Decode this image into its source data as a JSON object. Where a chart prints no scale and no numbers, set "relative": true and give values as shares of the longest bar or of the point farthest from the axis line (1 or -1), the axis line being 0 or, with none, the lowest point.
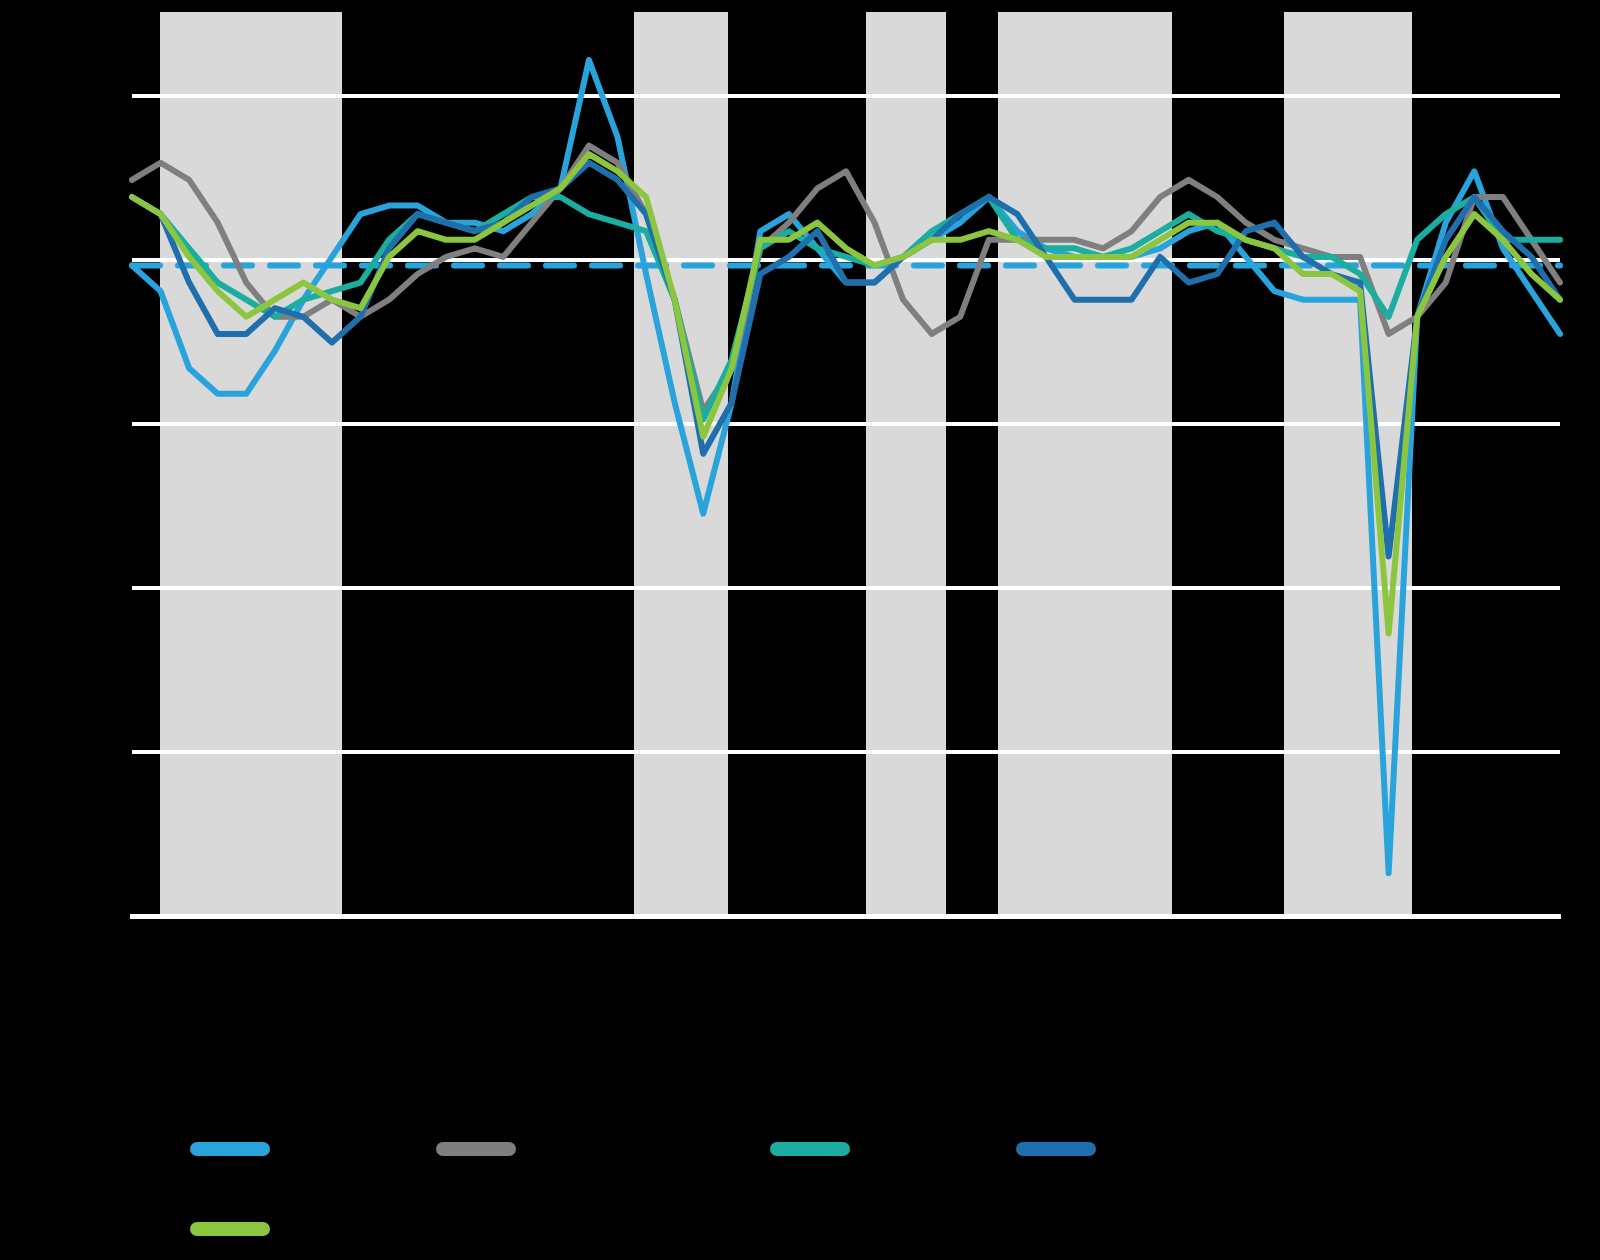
{
  "chart_data": {
    "type": "line",
    "relative": true,
    "grid": "y",
    "marker": "none",
    "line_style": "solid",
    "categories": [
      null,
      null,
      null,
      null,
      null,
      null,
      null,
      null,
      null,
      null,
      null,
      null,
      null,
      null,
      null,
      null,
      null,
      null,
      null,
      null,
      null,
      null,
      null,
      null,
      null,
      null,
      null,
      null,
      null,
      null,
      null,
      null,
      null,
      null,
      null,
      null,
      null,
      null,
      null,
      null,
      null,
      null,
      null,
      null,
      null,
      null,
      null,
      null,
      null,
      null,
      null
    ],
    "series": [
      {
        "color": "#29a3dc",
        "line_style": "dashed",
        "values": [
          0.76,
          0.76,
          0.76,
          0.76,
          0.76,
          0.76,
          0.76,
          0.76,
          0.76,
          0.76,
          0.76,
          0.76,
          0.76,
          0.76,
          0.76,
          0.76,
          0.76,
          0.76,
          0.76,
          0.76,
          0.76,
          0.76,
          0.76,
          0.76,
          0.76,
          0.76,
          0.76,
          0.76,
          0.76,
          0.76,
          0.76,
          0.76,
          0.76,
          0.76,
          0.76,
          0.76,
          0.76,
          0.76,
          0.76,
          0.76,
          0.76,
          0.76,
          0.76,
          0.76,
          0.76,
          0.76,
          0.76,
          0.76,
          0.76,
          0.76,
          0.76
        ]
      },
      {
        "color": "#29a3dc",
        "values": [
          0.76,
          0.73,
          0.64,
          0.61,
          0.61,
          0.66,
          0.72,
          0.77,
          0.82,
          0.83,
          0.83,
          0.81,
          0.81,
          0.8,
          0.82,
          0.85,
          1,
          0.91,
          0.75,
          0.6,
          0.47,
          0.6,
          0.8,
          0.82,
          0.78,
          0.74,
          0.74,
          0.77,
          0.79,
          0.81,
          0.84,
          0.8,
          0.78,
          0.77,
          0.77,
          0.77,
          0.78,
          0.8,
          0.81,
          0.77,
          0.73,
          0.72,
          0.72,
          0.72,
          0.05,
          0.7,
          0.81,
          0.87,
          0.78,
          0.73,
          0.68
        ]
      },
      {
        "color": "#7f7f7f",
        "values": [
          0.86,
          0.88,
          0.86,
          0.81,
          0.74,
          0.7,
          0.7,
          0.72,
          0.7,
          0.72,
          0.75,
          0.77,
          0.78,
          0.77,
          0.81,
          0.85,
          0.9,
          0.88,
          0.82,
          0.72,
          0.59,
          0.64,
          0.78,
          0.81,
          0.85,
          0.87,
          0.81,
          0.72,
          0.68,
          0.7,
          0.79,
          0.79,
          0.79,
          0.79,
          0.78,
          0.8,
          0.84,
          0.86,
          0.84,
          0.81,
          0.79,
          0.78,
          0.77,
          0.77,
          0.68,
          0.7,
          0.74,
          0.84,
          0.84,
          0.79,
          0.74
        ]
      },
      {
        "color": "#1aada0",
        "values": [
          0.84,
          0.82,
          0.78,
          0.74,
          0.72,
          0.7,
          0.72,
          0.73,
          0.74,
          0.79,
          0.82,
          0.81,
          0.8,
          0.82,
          0.84,
          0.84,
          0.82,
          0.81,
          0.8,
          0.72,
          0.58,
          0.65,
          0.78,
          0.8,
          0.78,
          0.77,
          0.76,
          0.77,
          0.8,
          0.82,
          0.84,
          0.79,
          0.78,
          0.78,
          0.77,
          0.78,
          0.8,
          0.82,
          0.8,
          0.79,
          0.78,
          0.77,
          0.77,
          0.75,
          0.7,
          0.79,
          0.82,
          0.84,
          0.79,
          0.79,
          0.79
        ]
      },
      {
        "color": "#1f6fad",
        "values": [
          0.84,
          0.82,
          0.74,
          0.68,
          0.68,
          0.71,
          0.7,
          0.67,
          0.7,
          0.78,
          0.82,
          0.81,
          0.8,
          0.81,
          0.84,
          0.85,
          0.88,
          0.86,
          0.82,
          0.72,
          0.54,
          0.6,
          0.75,
          0.77,
          0.8,
          0.74,
          0.74,
          0.77,
          0.79,
          0.82,
          0.84,
          0.82,
          0.77,
          0.72,
          0.72,
          0.72,
          0.77,
          0.74,
          0.75,
          0.8,
          0.81,
          0.77,
          0.75,
          0.74,
          0.42,
          0.7,
          0.79,
          0.84,
          0.8,
          0.77,
          0.72
        ]
      },
      {
        "color": "#8cc63f",
        "values": [
          0.84,
          0.82,
          0.77,
          0.73,
          0.7,
          0.72,
          0.74,
          0.72,
          0.71,
          0.77,
          0.8,
          0.79,
          0.79,
          0.81,
          0.83,
          0.85,
          0.89,
          0.87,
          0.84,
          0.72,
          0.56,
          0.64,
          0.79,
          0.79,
          0.81,
          0.78,
          0.76,
          0.77,
          0.79,
          0.79,
          0.8,
          0.79,
          0.77,
          0.77,
          0.77,
          0.77,
          0.79,
          0.81,
          0.81,
          0.79,
          0.78,
          0.75,
          0.75,
          0.73,
          0.33,
          0.7,
          0.77,
          0.82,
          0.79,
          0.75,
          0.72
        ]
      }
    ]
  }
}
